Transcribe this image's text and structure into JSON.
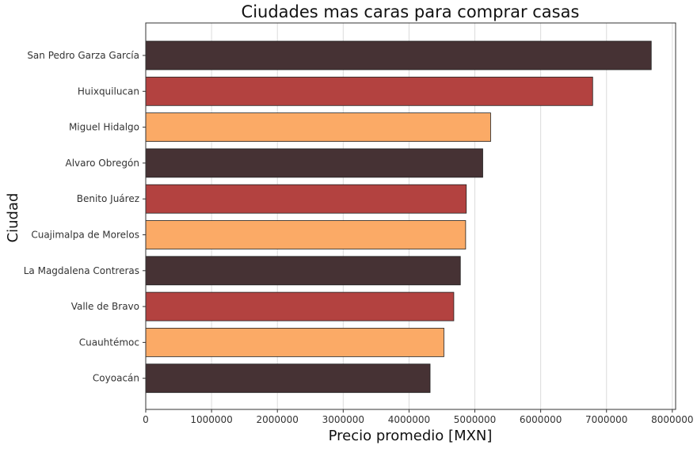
{
  "chart_data": {
    "type": "bar",
    "orientation": "horizontal",
    "title": "Ciudades mas caras para comprar casas",
    "xlabel": "Precio promedio [MXN]",
    "ylabel": "Ciudad",
    "categories": [
      "San Pedro Garza García",
      "Huixquilucan",
      "Miguel Hidalgo",
      "Alvaro Obregón",
      "Benito Juárez",
      "Cuajimalpa de Morelos",
      "La Magdalena Contreras",
      "Valle de Bravo",
      "Cuauhtémoc",
      "Coyoacán"
    ],
    "values": [
      7680000,
      6790000,
      5240000,
      5120000,
      4870000,
      4860000,
      4780000,
      4680000,
      4530000,
      4320000
    ],
    "bar_colors": [
      "#463234",
      "#b34240",
      "#fbaa66",
      "#463234",
      "#b34240",
      "#fbaa66",
      "#463234",
      "#b34240",
      "#fbaa66",
      "#463234"
    ],
    "xlim": [
      0,
      8050000
    ],
    "xticks": [
      0,
      1000000,
      2000000,
      3000000,
      4000000,
      5000000,
      6000000,
      7000000,
      8000000
    ],
    "xtick_labels": [
      "0",
      "1000000",
      "2000000",
      "3000000",
      "4000000",
      "5000000",
      "6000000",
      "7000000",
      "8000000"
    ],
    "grid": "vertical",
    "legend": "none"
  }
}
